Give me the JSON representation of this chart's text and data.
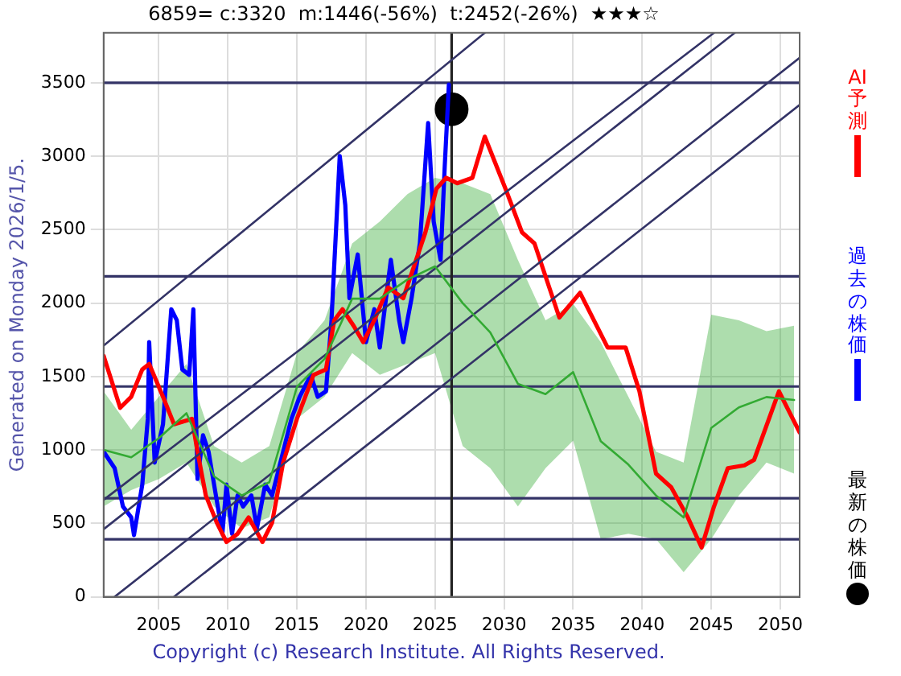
{
  "chart_data": {
    "type": "line",
    "title": "6859= c:3320  m:1446(-56%)  t:2452(-26%)  ★★★☆",
    "ylabel": "Generated on Monday 2026/1/5.",
    "annotations": [
      "Copyright (c) Research Institute. All Rights Reserved."
    ],
    "xlim": [
      2001,
      2051.4
    ],
    "xticks": [
      2005,
      2010,
      2015,
      2020,
      2025,
      2030,
      2035,
      2040,
      2045,
      2050
    ],
    "ylim": [
      0,
      3840
    ],
    "yticks": [
      0,
      500,
      1000,
      1500,
      2000,
      2500,
      3000,
      3500
    ],
    "grid": true,
    "legend": "right",
    "line_style": "solid",
    "ref_lines": [
      {
        "axis": "y",
        "value": 3500,
        "color": "#333366"
      },
      {
        "axis": "y",
        "value": 2182,
        "color": "#333366"
      },
      {
        "axis": "y",
        "value": 1432,
        "color": "#333366"
      },
      {
        "axis": "y",
        "value": 671,
        "color": "#333366"
      },
      {
        "axis": "y",
        "value": 392,
        "color": "#333366"
      },
      {
        "axis": "x",
        "value": 2026.2,
        "color": "#222222"
      }
    ],
    "series": [
      {
        "type": "line",
        "color": "#33aa33",
        "x": [
          2001,
          2003,
          2005,
          2007,
          2009,
          2011,
          2013,
          2015,
          2017,
          2019,
          2021,
          2023,
          2025,
          2027,
          2029,
          2031,
          2033,
          2035,
          2037,
          2039,
          2041,
          2043,
          2045,
          2047,
          2049,
          2051
        ],
        "values": [
          1000,
          950,
          1080,
          1250,
          820,
          690,
          780,
          1430,
          1620,
          2030,
          2030,
          2160,
          2250,
          2000,
          1800,
          1450,
          1380,
          1530,
          1060,
          900,
          690,
          540,
          1150,
          1290,
          1360,
          1340
        ],
        "lower": [
          615,
          727,
          802,
          914,
          615,
          466,
          541,
          1212,
          1362,
          1660,
          1511,
          1585,
          1660,
          1026,
          876,
          615,
          876,
          1063,
          392,
          429,
          392,
          168,
          392,
          690,
          914,
          839
        ],
        "upper": [
          1399,
          1138,
          1362,
          1585,
          1026,
          914,
          1026,
          1660,
          1883,
          2406,
          2555,
          2742,
          2853,
          2816,
          2742,
          2294,
          1883,
          1995,
          1734,
          1362,
          988,
          914,
          1921,
          1883,
          1809,
          1846
        ]
      },
      {
        "type": "line",
        "color": "#333366",
        "x": [
          2001,
          2028.6
        ],
        "values": [
          1710,
          3840
        ]
      },
      {
        "type": "line",
        "color": "#333366",
        "x": [
          2001,
          2045.2
        ],
        "values": [
          660,
          3840
        ]
      },
      {
        "type": "line",
        "color": "#333366",
        "x": [
          2001,
          2046.7
        ],
        "values": [
          460,
          3840
        ]
      },
      {
        "type": "line",
        "color": "#333366",
        "x": [
          2001.8,
          2051.4
        ],
        "values": [
          0,
          3670
        ]
      },
      {
        "type": "line",
        "color": "#333366",
        "x": [
          2006.1,
          2051.4
        ],
        "values": [
          0,
          3350
        ]
      },
      {
        "type": "line",
        "name": "AI予測",
        "color": "#ff0000",
        "x": [
          2001.0,
          2002.2,
          2003.0,
          2003.8,
          2004.3,
          2005.3,
          2006.1,
          2007.4,
          2007.8,
          2008.4,
          2009.2,
          2009.9,
          2010.7,
          2011.5,
          2012.5,
          2013.2,
          2014.0,
          2015.0,
          2016.2,
          2017.1,
          2017.7,
          2018.3,
          2019.1,
          2019.8,
          2020.6,
          2021.6,
          2022.7,
          2023.5,
          2024.3,
          2025.1,
          2025.8,
          2026.6,
          2027.7,
          2028.6,
          2030.1,
          2031.3,
          2032.2,
          2034.0,
          2035.5,
          2037.5,
          2038.8,
          2039.8,
          2041.0,
          2042.1,
          2043.3,
          2044.3,
          2045.2,
          2046.2,
          2047.4,
          2048.1,
          2049.9,
          2051.4
        ],
        "values": [
          1641,
          1287,
          1362,
          1548,
          1585,
          1362,
          1175,
          1212,
          988,
          690,
          504,
          373,
          429,
          541,
          373,
          504,
          914,
          1212,
          1511,
          1548,
          1883,
          1958,
          1846,
          1734,
          1883,
          2107,
          2033,
          2257,
          2481,
          2779,
          2853,
          2816,
          2853,
          3133,
          2779,
          2481,
          2406,
          1902,
          2070,
          1697,
          1697,
          1399,
          839,
          746,
          541,
          336,
          615,
          876,
          895,
          932,
          1399,
          1119
        ]
      },
      {
        "type": "line",
        "name": "過去の株価",
        "color": "#0000ff",
        "x": [
          2001.0,
          2001.8,
          2002.4,
          2003.0,
          2003.2,
          2003.8,
          2004.2,
          2004.3,
          2004.7,
          2005.3,
          2005.9,
          2006.3,
          2006.7,
          2007.2,
          2007.5,
          2007.8,
          2008.2,
          2008.6,
          2009.0,
          2009.6,
          2009.9,
          2010.3,
          2010.7,
          2011.1,
          2011.7,
          2012.1,
          2012.7,
          2013.2,
          2013.8,
          2014.6,
          2015.2,
          2016.0,
          2016.5,
          2017.1,
          2017.5,
          2018.1,
          2018.5,
          2018.8,
          2019.4,
          2020.0,
          2020.6,
          2021.0,
          2021.8,
          2022.4,
          2022.7,
          2023.3,
          2023.9,
          2024.5,
          2024.9,
          2025.4,
          2025.7,
          2026.0
        ],
        "values": [
          988,
          876,
          615,
          541,
          420,
          764,
          1212,
          1734,
          914,
          1175,
          1958,
          1883,
          1548,
          1511,
          1958,
          802,
          1100,
          988,
          764,
          429,
          764,
          429,
          690,
          615,
          690,
          466,
          764,
          690,
          914,
          1212,
          1362,
          1511,
          1362,
          1399,
          1883,
          3002,
          2667,
          2033,
          2331,
          1734,
          1958,
          1697,
          2294,
          1883,
          1734,
          2033,
          2406,
          3226,
          2555,
          2294,
          2928,
          3488
        ]
      },
      {
        "type": "scatter",
        "name": "最新の株価",
        "color": "#000000",
        "marker": "circle",
        "x": [
          2026.2
        ],
        "values": [
          3320
        ]
      }
    ]
  }
}
